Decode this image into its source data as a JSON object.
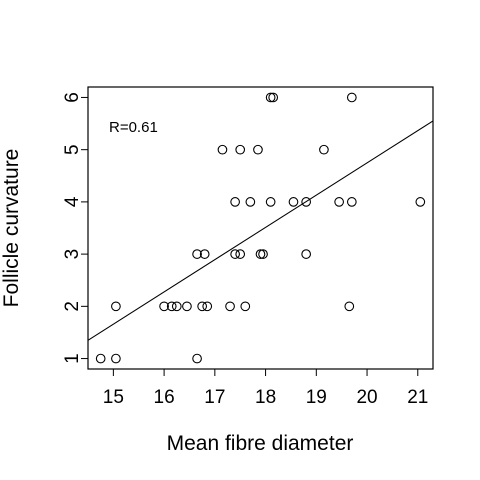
{
  "chart_data": {
    "type": "scatter",
    "title": "",
    "xlabel": "Mean fibre diameter",
    "ylabel": "Follicle curvature",
    "xlim": [
      14.5,
      21.3
    ],
    "ylim": [
      0.8,
      6.2
    ],
    "xticks": [
      15,
      16,
      17,
      18,
      19,
      20,
      21
    ],
    "yticks": [
      1,
      2,
      3,
      4,
      5,
      6
    ],
    "grid": false,
    "annotation": "R=0.61",
    "fit_line": {
      "x": [
        14.5,
        21.3
      ],
      "y": [
        1.35,
        5.55
      ]
    },
    "points": [
      {
        "x": 14.75,
        "y": 1
      },
      {
        "x": 15.05,
        "y": 1
      },
      {
        "x": 16.65,
        "y": 1
      },
      {
        "x": 15.05,
        "y": 2
      },
      {
        "x": 16.0,
        "y": 2
      },
      {
        "x": 16.15,
        "y": 2
      },
      {
        "x": 16.25,
        "y": 2
      },
      {
        "x": 16.45,
        "y": 2
      },
      {
        "x": 16.75,
        "y": 2
      },
      {
        "x": 16.85,
        "y": 2
      },
      {
        "x": 17.3,
        "y": 2
      },
      {
        "x": 17.6,
        "y": 2
      },
      {
        "x": 19.65,
        "y": 2
      },
      {
        "x": 16.65,
        "y": 3
      },
      {
        "x": 16.8,
        "y": 3
      },
      {
        "x": 17.4,
        "y": 3
      },
      {
        "x": 17.5,
        "y": 3
      },
      {
        "x": 17.9,
        "y": 3
      },
      {
        "x": 17.95,
        "y": 3
      },
      {
        "x": 18.8,
        "y": 3
      },
      {
        "x": 17.4,
        "y": 4
      },
      {
        "x": 17.7,
        "y": 4
      },
      {
        "x": 18.1,
        "y": 4
      },
      {
        "x": 18.55,
        "y": 4
      },
      {
        "x": 18.8,
        "y": 4
      },
      {
        "x": 19.45,
        "y": 4
      },
      {
        "x": 19.7,
        "y": 4
      },
      {
        "x": 21.05,
        "y": 4
      },
      {
        "x": 17.15,
        "y": 5
      },
      {
        "x": 17.5,
        "y": 5
      },
      {
        "x": 17.85,
        "y": 5
      },
      {
        "x": 19.15,
        "y": 5
      },
      {
        "x": 18.1,
        "y": 6
      },
      {
        "x": 18.15,
        "y": 6
      },
      {
        "x": 19.7,
        "y": 6
      }
    ]
  }
}
